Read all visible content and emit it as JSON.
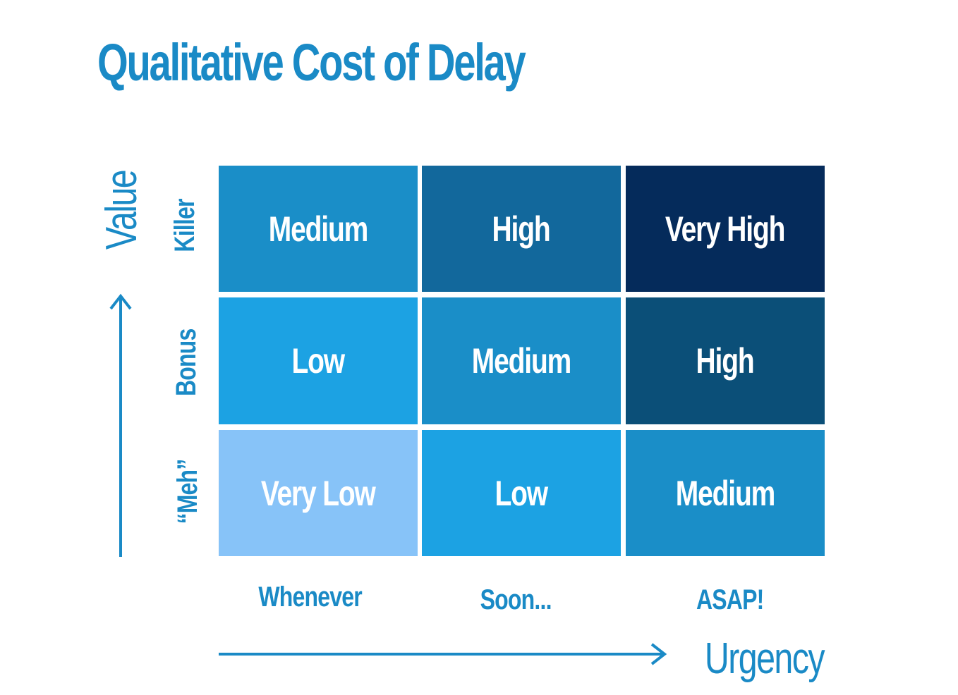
{
  "title": "Qualitative Cost of Delay",
  "colors": {
    "label": "#1a8ac6",
    "very_low": "#87c3f8",
    "low": "#1ca2e3",
    "medium": "#1a8ec8",
    "high_soon": "#12689c",
    "high_asap": "#0b4f78",
    "very_high": "#052b5b"
  },
  "axes": {
    "y_title": "Value",
    "x_title": "Urgency"
  },
  "rows": [
    "Killer",
    "Bonus",
    "“Meh”"
  ],
  "columns": [
    "Whenever",
    "Soon...",
    "ASAP!"
  ],
  "grid": [
    [
      {
        "label": "Medium",
        "color": "#1a8ec8"
      },
      {
        "label": "High",
        "color": "#12689c"
      },
      {
        "label": "Very High",
        "color": "#052b5b"
      }
    ],
    [
      {
        "label": "Low",
        "color": "#1ca2e3"
      },
      {
        "label": "Medium",
        "color": "#1a8ec8"
      },
      {
        "label": "High",
        "color": "#0b4f78"
      }
    ],
    [
      {
        "label": "Very Low",
        "color": "#87c3f8"
      },
      {
        "label": "Low",
        "color": "#1ca2e3"
      },
      {
        "label": "Medium",
        "color": "#1a8ec8"
      }
    ]
  ]
}
